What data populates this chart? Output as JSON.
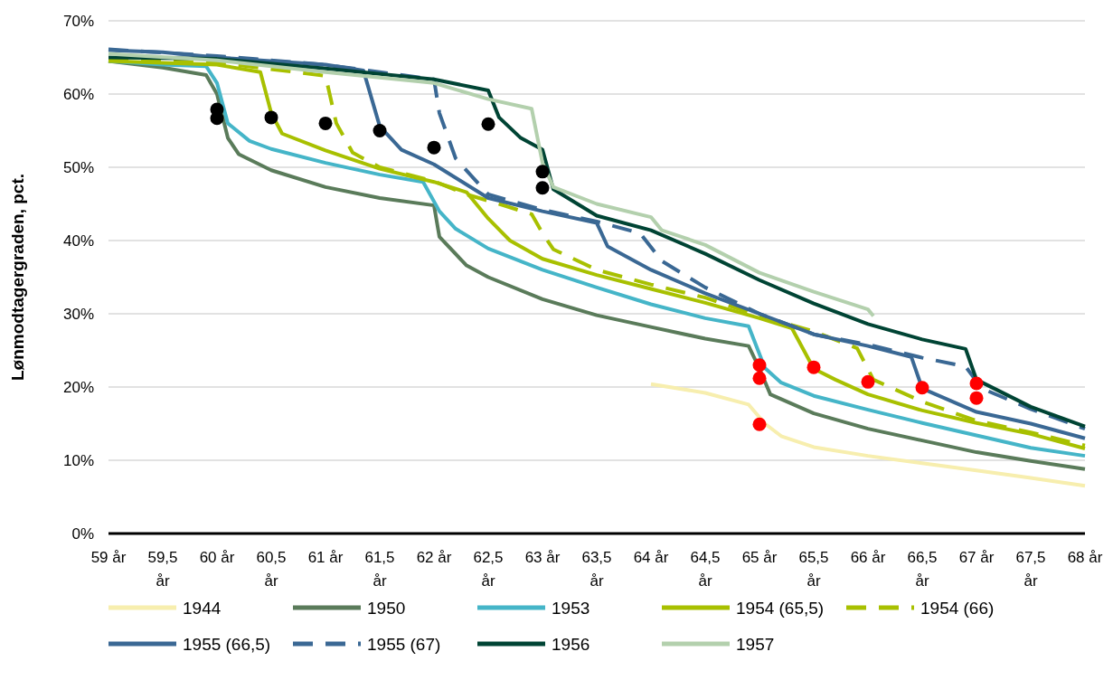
{
  "chart_data": {
    "type": "line",
    "ylabel": "Lønmodtagergraden, pct.",
    "xlim": [
      59,
      68
    ],
    "ylim": [
      0,
      70
    ],
    "xticks": [
      {
        "value": 59,
        "label": "59 år"
      },
      {
        "value": 59.5,
        "label": "59,5 år"
      },
      {
        "value": 60,
        "label": "60 år"
      },
      {
        "value": 60.5,
        "label": "60,5 år"
      },
      {
        "value": 61,
        "label": "61 år"
      },
      {
        "value": 61.5,
        "label": "61,5 år"
      },
      {
        "value": 62,
        "label": "62 år"
      },
      {
        "value": 62.5,
        "label": "62,5 år"
      },
      {
        "value": 63,
        "label": "63 år"
      },
      {
        "value": 63.5,
        "label": "63,5 år"
      },
      {
        "value": 64,
        "label": "64 år"
      },
      {
        "value": 64.5,
        "label": "64,5 år"
      },
      {
        "value": 65,
        "label": "65 år"
      },
      {
        "value": 65.5,
        "label": "65,5 år"
      },
      {
        "value": 66,
        "label": "66 år"
      },
      {
        "value": 66.5,
        "label": "66,5 år"
      },
      {
        "value": 67,
        "label": "67 år"
      },
      {
        "value": 67.5,
        "label": "67,5 år"
      },
      {
        "value": 68,
        "label": "68 år"
      }
    ],
    "yticks": [
      {
        "value": 0,
        "label": "0%"
      },
      {
        "value": 10,
        "label": "10%"
      },
      {
        "value": 20,
        "label": "20%"
      },
      {
        "value": 30,
        "label": "30%"
      },
      {
        "value": 40,
        "label": "40%"
      },
      {
        "value": 50,
        "label": "50%"
      },
      {
        "value": 60,
        "label": "60%"
      },
      {
        "value": 70,
        "label": "70%"
      }
    ],
    "grid": "y",
    "legend": "bottom",
    "series": [
      {
        "name": "1944",
        "color": "#f7eeae",
        "line_style": "solid",
        "x": [
          64,
          64.5,
          64.9,
          65.05,
          65.2,
          65.5,
          66,
          66.5,
          67,
          67.5,
          68
        ],
        "values": [
          20.4,
          19.2,
          17.6,
          15,
          13.3,
          11.8,
          10.6,
          9.6,
          8.6,
          7.6,
          6.5
        ]
      },
      {
        "name": "1950",
        "color": "#5a7b5a",
        "line_style": "solid",
        "x": [
          59,
          59.5,
          59.9,
          60,
          60.1,
          60.2,
          60.5,
          61,
          61.5,
          62,
          62.05,
          62.3,
          62.5,
          63,
          63.5,
          64,
          64.5,
          64.9,
          65,
          65.1,
          65.5,
          66,
          66.5,
          67,
          67.5,
          68
        ],
        "values": [
          64.5,
          63.6,
          62.6,
          60,
          54,
          51.8,
          49.6,
          47.3,
          45.8,
          44.8,
          40.5,
          36.6,
          35,
          32,
          29.8,
          28.2,
          26.6,
          25.6,
          22.5,
          19,
          16.4,
          14.3,
          12.7,
          11.1,
          9.9,
          8.8
        ]
      },
      {
        "name": "1953",
        "color": "#45b5c8",
        "line_style": "solid",
        "x": [
          59,
          59.5,
          59.9,
          60,
          60.1,
          60.3,
          60.5,
          61,
          61.5,
          61.9,
          62.05,
          62.2,
          62.5,
          63,
          63.5,
          64,
          64.5,
          64.9,
          65.05,
          65.2,
          65.5,
          66,
          66.5,
          67,
          67.5,
          68
        ],
        "values": [
          64.5,
          64,
          63.8,
          61.5,
          56,
          53.6,
          52.5,
          50.6,
          49,
          48,
          44,
          41.6,
          38.9,
          36,
          33.6,
          31.3,
          29.4,
          28.3,
          22.6,
          20.6,
          18.8,
          16.9,
          15.1,
          13.4,
          11.7,
          10.6
        ]
      },
      {
        "name": "1954 (65,5)",
        "color": "#a8c000",
        "line_style": "solid",
        "x": [
          59,
          60,
          60.4,
          60.5,
          60.6,
          61,
          61.5,
          62,
          62.3,
          62.5,
          62.7,
          63,
          63.5,
          64,
          64.5,
          65,
          65.3,
          65.5,
          65.7,
          66,
          66.5,
          67,
          67.5,
          68
        ],
        "values": [
          64.5,
          64,
          63,
          57.4,
          54.6,
          52.3,
          49.8,
          48,
          46.6,
          43,
          40,
          37.5,
          35.3,
          33.4,
          31.5,
          29.4,
          28,
          22.5,
          21,
          19,
          16.8,
          15.1,
          13.6,
          11.6
        ]
      },
      {
        "name": "1954 (66)",
        "color": "#a8c000",
        "line_style": "dashed",
        "x": [
          59,
          60,
          61,
          61.1,
          61.25,
          61.5,
          62,
          62.3,
          62.6,
          62.9,
          63,
          63.1,
          63.5,
          64,
          64.5,
          65,
          65.5,
          65.9,
          66.05,
          66.5,
          67,
          67.5,
          68
        ],
        "values": [
          64.8,
          64.3,
          62.5,
          56,
          52,
          50,
          48.1,
          46.3,
          45,
          43.6,
          41,
          38.8,
          36,
          34,
          32.2,
          29.7,
          27.6,
          25.3,
          21,
          18,
          15.4,
          13.8,
          12
        ]
      },
      {
        "name": "1955 (66,5)",
        "color": "#3a6894",
        "line_style": "solid",
        "x": [
          59,
          59.5,
          60,
          61,
          61.35,
          61.5,
          61.7,
          62,
          62.5,
          63,
          63.5,
          63.6,
          64,
          64.5,
          65,
          65.5,
          66,
          66.4,
          66.5,
          67,
          67.5,
          68
        ],
        "values": [
          66,
          65.7,
          65,
          64,
          63.2,
          55.6,
          52.4,
          50.4,
          45.8,
          44,
          42.4,
          39.2,
          36,
          32.8,
          30,
          27.2,
          25.6,
          24.1,
          19.8,
          16.6,
          15,
          13
        ]
      },
      {
        "name": "1955 (67)",
        "color": "#3a6894",
        "line_style": "dashed",
        "x": [
          59,
          60,
          61,
          61.5,
          62,
          62.05,
          62.2,
          62.5,
          63,
          63.5,
          63.9,
          64.1,
          64.5,
          65,
          65.5,
          66,
          66.5,
          66.9,
          67.05,
          67.5,
          68
        ],
        "values": [
          66.1,
          65.2,
          64,
          63,
          62,
          57.4,
          51.2,
          46.3,
          44.2,
          42.6,
          41,
          37.2,
          33.6,
          30,
          27.2,
          25.8,
          24,
          22.8,
          19.8,
          17,
          14.3
        ]
      },
      {
        "name": "1956",
        "color": "#004434",
        "line_style": "solid",
        "x": [
          59,
          60,
          61,
          62,
          62.5,
          62.6,
          62.8,
          63,
          63.1,
          63.5,
          64,
          64.5,
          65,
          65.5,
          66,
          66.5,
          66.9,
          67,
          67.5,
          68
        ],
        "values": [
          65,
          64.8,
          63.5,
          62,
          60.5,
          56.8,
          54,
          52.4,
          47,
          43.4,
          41.4,
          38.2,
          34.6,
          31.4,
          28.6,
          26.5,
          25.2,
          21,
          17.3,
          14.6
        ]
      },
      {
        "name": "1957",
        "color": "#b3d0ad",
        "line_style": "solid",
        "x": [
          59,
          60,
          61,
          62,
          62.5,
          62.9,
          63,
          63.1,
          63.5,
          64,
          64.1,
          64.5,
          65,
          65.5,
          66,
          66.05
        ],
        "values": [
          65.5,
          64.6,
          63,
          61.5,
          59.3,
          58,
          50.6,
          47.3,
          45,
          43.2,
          41.4,
          39.4,
          35.6,
          33,
          30.6,
          29.7
        ]
      },
      {
        "type": "scatter",
        "color": "#000000",
        "marker": "circle",
        "x": [
          60,
          60,
          60.5,
          61,
          61.5,
          62,
          62.5,
          63,
          63
        ],
        "values": [
          57.9,
          56.7,
          56.8,
          56,
          55,
          52.7,
          55.9,
          49.4,
          47.2
        ]
      },
      {
        "type": "scatter",
        "color": "#ff0000",
        "marker": "circle",
        "x": [
          65,
          65,
          65,
          65.5,
          66,
          66.5,
          67,
          67
        ],
        "values": [
          23,
          21.2,
          14.9,
          22.7,
          20.7,
          19.9,
          20.5,
          18.5
        ]
      }
    ]
  }
}
